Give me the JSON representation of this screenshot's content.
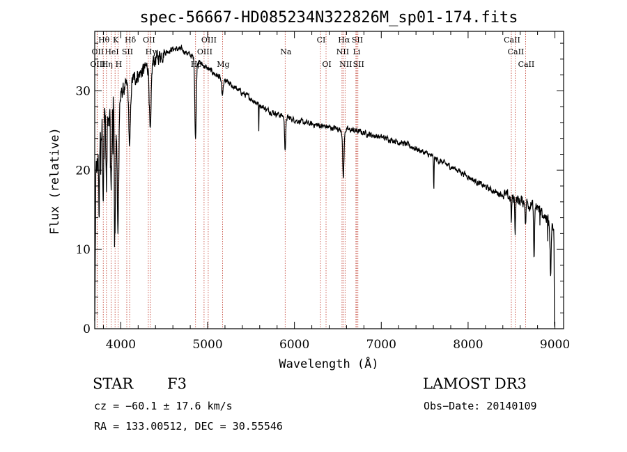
{
  "chart_data": {
    "type": "line",
    "title": "spec-56667-HD085234N322826M_sp01-174.fits",
    "xlabel": "Wavelength (Å)",
    "ylabel": "Flux (relative)",
    "xlim": [
      3700,
      9100
    ],
    "ylim": [
      0,
      37.5
    ],
    "xticks": [
      4000,
      5000,
      6000,
      7000,
      8000,
      9000
    ],
    "yticks": [
      0,
      10,
      20,
      30
    ],
    "continuum": {
      "x": [
        3700,
        3800,
        3950,
        4100,
        4300,
        4450,
        4600,
        4700,
        4800,
        4950,
        5100,
        5300,
        5500,
        5700,
        5900,
        6100,
        6300,
        6500,
        6700,
        6900,
        7100,
        7300,
        7500,
        7700,
        7900,
        8100,
        8300,
        8500,
        8700,
        8800,
        8900,
        9000
      ],
      "y": [
        18,
        27,
        29,
        31,
        33,
        34.5,
        35.3,
        35.2,
        34.5,
        33.2,
        32,
        30.5,
        29,
        27.5,
        26.7,
        26,
        25.6,
        25.2,
        25,
        24.4,
        23.9,
        23.2,
        22.2,
        21,
        19.9,
        18.5,
        17.3,
        16.5,
        15.8,
        15.2,
        14,
        12.5
      ]
    },
    "absorption_lines": [
      {
        "x": 3750,
        "depth": 8,
        "width": 5
      },
      {
        "x": 3798,
        "depth": 9,
        "width": 5
      },
      {
        "x": 3835,
        "depth": 10,
        "width": 6
      },
      {
        "x": 3889,
        "depth": 11,
        "width": 7
      },
      {
        "x": 3934,
        "depth": 15,
        "width": 8
      },
      {
        "x": 3968,
        "depth": 16,
        "width": 9
      },
      {
        "x": 4102,
        "depth": 8,
        "width": 10
      },
      {
        "x": 4340,
        "depth": 9,
        "width": 10
      },
      {
        "x": 4861,
        "depth": 10,
        "width": 8
      },
      {
        "x": 5170,
        "depth": 2,
        "width": 10
      },
      {
        "x": 5589,
        "depth": 4,
        "width": 2
      },
      {
        "x": 5893,
        "depth": 4,
        "width": 7
      },
      {
        "x": 6563,
        "depth": 6,
        "width": 8
      },
      {
        "x": 7605,
        "depth": 4,
        "width": 3
      },
      {
        "x": 8498,
        "depth": 3,
        "width": 4
      },
      {
        "x": 8542,
        "depth": 4,
        "width": 4
      },
      {
        "x": 8662,
        "depth": 3,
        "width": 4
      },
      {
        "x": 8760,
        "depth": 7,
        "width": 5
      },
      {
        "x": 8950,
        "depth": 6,
        "width": 6
      },
      {
        "x": 9000,
        "depth": 10,
        "width": 6
      }
    ],
    "line_markers": [
      {
        "label": "Hθ",
        "x": 3798,
        "row": 0
      },
      {
        "label": "K",
        "x": 3934,
        "row": 0
      },
      {
        "label": "Hδ",
        "x": 4102,
        "row": 0
      },
      {
        "label": "OII",
        "x": 4317,
        "row": 0
      },
      {
        "label": "OIII",
        "x": 5007,
        "row": 0
      },
      {
        "label": "CI",
        "x": 6300,
        "row": 0
      },
      {
        "label": "Hα",
        "x": 6563,
        "row": 0
      },
      {
        "label": "SII",
        "x": 6717,
        "row": 0
      },
      {
        "label": "CaII",
        "x": 8498,
        "row": 0
      },
      {
        "label": "OII",
        "x": 3727,
        "row": 1
      },
      {
        "label": "HeI",
        "x": 3889,
        "row": 1
      },
      {
        "label": "SII",
        "x": 4069,
        "row": 1
      },
      {
        "label": "Hγ",
        "x": 4340,
        "row": 1
      },
      {
        "label": "OIII",
        "x": 4959,
        "row": 1
      },
      {
        "label": "Na",
        "x": 5893,
        "row": 1
      },
      {
        "label": "NII",
        "x": 6548,
        "row": 1
      },
      {
        "label": "Li",
        "x": 6708,
        "row": 1
      },
      {
        "label": "CaII",
        "x": 8542,
        "row": 1
      },
      {
        "label": "OIII",
        "x": 3727,
        "row": 2
      },
      {
        "label": "Hη",
        "x": 3835,
        "row": 2
      },
      {
        "label": "H",
        "x": 3968,
        "row": 2
      },
      {
        "label": "Hβ",
        "x": 4861,
        "row": 2
      },
      {
        "label": "Mg",
        "x": 5172,
        "row": 2
      },
      {
        "label": "OI",
        "x": 6364,
        "row": 2
      },
      {
        "label": "NII",
        "x": 6583,
        "row": 2
      },
      {
        "label": "SII",
        "x": 6731,
        "row": 2
      },
      {
        "label": "CaII",
        "x": 8662,
        "row": 2
      }
    ]
  },
  "info": {
    "object_class": "STAR",
    "subclass": "F3",
    "survey": "LAMOST DR3",
    "cz": "cz = −60.1 ± 17.6 km/s",
    "obs_date": "Obs−Date: 20140109",
    "coords": "RA = 133.00512, DEC =  30.55546"
  },
  "colors": {
    "spectrum": "#000000",
    "marker_line": "#c0392b",
    "axes": "#000000"
  }
}
